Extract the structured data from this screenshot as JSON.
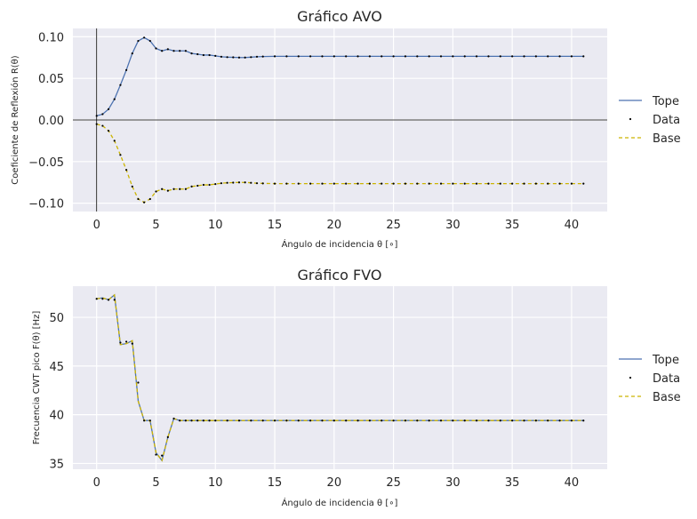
{
  "chart_data": [
    {
      "type": "line",
      "title": "Gráfico AVO",
      "xlabel": "Ángulo de incidencia θ [∘]",
      "ylabel": "Coeficiente de Reflexión R(θ)",
      "xlim": [
        -2,
        43
      ],
      "ylim": [
        -0.11,
        0.11
      ],
      "xticks": [
        0,
        5,
        10,
        15,
        20,
        25,
        30,
        35,
        40
      ],
      "yticks": [
        -0.1,
        -0.05,
        0.0,
        0.05,
        0.1
      ],
      "ytick_labels": [
        "−0.10",
        "−0.05",
        "0.00",
        "0.05",
        "0.10"
      ],
      "reference_lines": {
        "y": 0,
        "x": 0
      },
      "grid": true,
      "legend_position": "right",
      "series": [
        {
          "name": "Tope",
          "style": "solid",
          "color": "#4c72b0",
          "x": [
            0,
            0.5,
            1,
            1.5,
            2,
            2.5,
            3,
            3.5,
            4,
            4.5,
            5,
            5.5,
            6,
            6.5,
            7,
            7.5,
            8,
            8.5,
            9,
            9.5,
            10,
            10.5,
            11,
            11.5,
            12,
            12.5,
            13,
            13.5,
            14,
            15,
            16,
            17,
            18,
            19,
            20,
            21,
            22,
            23,
            24,
            25,
            26,
            27,
            28,
            29,
            30,
            31,
            32,
            33,
            34,
            35,
            36,
            37,
            38,
            39,
            40,
            41
          ],
          "y": [
            0.005,
            0.007,
            0.013,
            0.025,
            0.042,
            0.06,
            0.08,
            0.095,
            0.099,
            0.095,
            0.086,
            0.083,
            0.085,
            0.083,
            0.083,
            0.083,
            0.08,
            0.079,
            0.078,
            0.078,
            0.077,
            0.076,
            0.0755,
            0.0753,
            0.075,
            0.075,
            0.0755,
            0.076,
            0.0762,
            0.0765,
            0.0765,
            0.0765,
            0.0765,
            0.0765,
            0.0765,
            0.0765,
            0.0765,
            0.0765,
            0.0765,
            0.0765,
            0.0765,
            0.0765,
            0.0765,
            0.0765,
            0.0765,
            0.0765,
            0.0765,
            0.0765,
            0.0765,
            0.0765,
            0.0765,
            0.0765,
            0.0765,
            0.0765,
            0.0765,
            0.0765
          ]
        },
        {
          "name": "Data",
          "style": "markers",
          "color": "#000000",
          "x": [
            0,
            0.5,
            1,
            1.5,
            2,
            2.5,
            3,
            3.5,
            4,
            4.5,
            5,
            5.5,
            6,
            6.5,
            7,
            7.5,
            8,
            8.5,
            9,
            9.5,
            10,
            10.5,
            11,
            11.5,
            12,
            12.5,
            13,
            13.5,
            14,
            15,
            16,
            17,
            18,
            19,
            20,
            21,
            22,
            23,
            24,
            25,
            26,
            27,
            28,
            29,
            30,
            31,
            32,
            33,
            34,
            35,
            36,
            37,
            38,
            39,
            40,
            41
          ],
          "y_top": [
            0.005,
            0.007,
            0.013,
            0.025,
            0.042,
            0.06,
            0.08,
            0.095,
            0.099,
            0.095,
            0.086,
            0.083,
            0.085,
            0.083,
            0.083,
            0.083,
            0.08,
            0.079,
            0.078,
            0.078,
            0.077,
            0.076,
            0.0755,
            0.0753,
            0.075,
            0.075,
            0.0755,
            0.076,
            0.0762,
            0.0765,
            0.0765,
            0.0765,
            0.0765,
            0.0765,
            0.0765,
            0.0765,
            0.0765,
            0.0765,
            0.0765,
            0.0765,
            0.0765,
            0.0765,
            0.0765,
            0.0765,
            0.0765,
            0.0765,
            0.0765,
            0.0765,
            0.0765,
            0.0765,
            0.0765,
            0.0765,
            0.0765,
            0.0765,
            0.0765,
            0.0765
          ],
          "y_base": [
            -0.005,
            -0.007,
            -0.013,
            -0.025,
            -0.042,
            -0.06,
            -0.08,
            -0.095,
            -0.099,
            -0.095,
            -0.086,
            -0.083,
            -0.085,
            -0.083,
            -0.083,
            -0.083,
            -0.08,
            -0.079,
            -0.078,
            -0.078,
            -0.077,
            -0.076,
            -0.0755,
            -0.0753,
            -0.075,
            -0.075,
            -0.0755,
            -0.076,
            -0.0762,
            -0.0765,
            -0.0765,
            -0.0765,
            -0.0765,
            -0.0765,
            -0.0765,
            -0.0765,
            -0.0765,
            -0.0765,
            -0.0765,
            -0.0765,
            -0.0765,
            -0.0765,
            -0.0765,
            -0.0765,
            -0.0765,
            -0.0765,
            -0.0765,
            -0.0765,
            -0.0765,
            -0.0765,
            -0.0765,
            -0.0765,
            -0.0765,
            -0.0765,
            -0.0765,
            -0.0765
          ]
        },
        {
          "name": "Base",
          "style": "dashed",
          "color": "#ccb400",
          "x": [
            0,
            0.5,
            1,
            1.5,
            2,
            2.5,
            3,
            3.5,
            4,
            4.5,
            5,
            5.5,
            6,
            6.5,
            7,
            7.5,
            8,
            8.5,
            9,
            9.5,
            10,
            10.5,
            11,
            11.5,
            12,
            12.5,
            13,
            13.5,
            14,
            15,
            16,
            17,
            18,
            19,
            20,
            21,
            22,
            23,
            24,
            25,
            26,
            27,
            28,
            29,
            30,
            31,
            32,
            33,
            34,
            35,
            36,
            37,
            38,
            39,
            40,
            41
          ],
          "y": [
            -0.005,
            -0.007,
            -0.013,
            -0.025,
            -0.042,
            -0.06,
            -0.08,
            -0.095,
            -0.099,
            -0.095,
            -0.086,
            -0.083,
            -0.085,
            -0.083,
            -0.083,
            -0.083,
            -0.08,
            -0.079,
            -0.078,
            -0.078,
            -0.077,
            -0.076,
            -0.0755,
            -0.0753,
            -0.075,
            -0.075,
            -0.0755,
            -0.076,
            -0.0762,
            -0.0765,
            -0.0765,
            -0.0765,
            -0.0765,
            -0.0765,
            -0.0765,
            -0.0765,
            -0.0765,
            -0.0765,
            -0.0765,
            -0.0765,
            -0.0765,
            -0.0765,
            -0.0765,
            -0.0765,
            -0.0765,
            -0.0765,
            -0.0765,
            -0.0765,
            -0.0765,
            -0.0765,
            -0.0765,
            -0.0765,
            -0.0765,
            -0.0765,
            -0.0765,
            -0.0765
          ]
        }
      ]
    },
    {
      "type": "line",
      "title": "Gráfico FVO",
      "xlabel": "Ángulo de incidencia θ [∘]",
      "ylabel": "Frecuencia CWT pico F(θ) [Hz]",
      "xlim": [
        -2,
        43
      ],
      "ylim": [
        34.4,
        53.2
      ],
      "xticks": [
        0,
        5,
        10,
        15,
        20,
        25,
        30,
        35,
        40
      ],
      "yticks": [
        35,
        40,
        45,
        50
      ],
      "ytick_labels": [
        "35",
        "40",
        "45",
        "50"
      ],
      "grid": true,
      "legend_position": "right",
      "series": [
        {
          "name": "Tope",
          "style": "solid",
          "color": "#4c72b0",
          "x": [
            0,
            0.5,
            1,
            1.5,
            2,
            2.5,
            3,
            3.5,
            4,
            4.5,
            5,
            5.5,
            6,
            6.5,
            7,
            7.5,
            8,
            8.5,
            9,
            9.5,
            10,
            11,
            12,
            13,
            14,
            15,
            16,
            17,
            18,
            19,
            20,
            21,
            22,
            23,
            24,
            25,
            26,
            27,
            28,
            29,
            30,
            31,
            32,
            33,
            34,
            35,
            36,
            37,
            38,
            39,
            40,
            41
          ],
          "y": [
            51.9,
            52.0,
            51.8,
            52.3,
            47.2,
            47.3,
            47.6,
            41.4,
            39.4,
            39.4,
            36.1,
            35.3,
            37.7,
            39.6,
            39.4,
            39.4,
            39.4,
            39.4,
            39.4,
            39.4,
            39.4,
            39.4,
            39.4,
            39.4,
            39.4,
            39.4,
            39.4,
            39.4,
            39.4,
            39.4,
            39.4,
            39.4,
            39.4,
            39.4,
            39.4,
            39.4,
            39.4,
            39.4,
            39.4,
            39.4,
            39.4,
            39.4,
            39.4,
            39.4,
            39.4,
            39.4,
            39.4,
            39.4,
            39.4,
            39.4,
            39.4,
            39.4
          ]
        },
        {
          "name": "Data",
          "style": "markers",
          "color": "#000000",
          "x": [
            0,
            0.5,
            1,
            1.5,
            2,
            2.5,
            3,
            3.5,
            4,
            4.5,
            5,
            5.5,
            6,
            6.5,
            7,
            7.5,
            8,
            8.5,
            9,
            9.5,
            10,
            11,
            12,
            13,
            14,
            15,
            16,
            17,
            18,
            19,
            20,
            21,
            22,
            23,
            24,
            25,
            26,
            27,
            28,
            29,
            30,
            31,
            32,
            33,
            34,
            35,
            36,
            37,
            38,
            39,
            40,
            41
          ],
          "y": [
            51.9,
            51.9,
            51.8,
            51.8,
            47.4,
            47.5,
            47.3,
            43.3,
            39.4,
            39.4,
            35.9,
            35.8,
            37.7,
            39.6,
            39.4,
            39.4,
            39.4,
            39.4,
            39.4,
            39.4,
            39.4,
            39.4,
            39.4,
            39.4,
            39.4,
            39.4,
            39.4,
            39.4,
            39.4,
            39.4,
            39.4,
            39.4,
            39.4,
            39.4,
            39.4,
            39.4,
            39.4,
            39.4,
            39.4,
            39.4,
            39.4,
            39.4,
            39.4,
            39.4,
            39.4,
            39.4,
            39.4,
            39.4,
            39.4,
            39.4,
            39.4,
            39.4
          ]
        },
        {
          "name": "Base",
          "style": "dashed",
          "color": "#ccb400",
          "x": [
            0,
            0.5,
            1,
            1.5,
            2,
            2.5,
            3,
            3.5,
            4,
            4.5,
            5,
            5.5,
            6,
            6.5,
            7,
            7.5,
            8,
            8.5,
            9,
            9.5,
            10,
            11,
            12,
            13,
            14,
            15,
            16,
            17,
            18,
            19,
            20,
            21,
            22,
            23,
            24,
            25,
            26,
            27,
            28,
            29,
            30,
            31,
            32,
            33,
            34,
            35,
            36,
            37,
            38,
            39,
            40,
            41
          ],
          "y": [
            51.9,
            52.0,
            51.8,
            52.3,
            47.2,
            47.3,
            47.6,
            41.4,
            39.4,
            39.4,
            36.1,
            35.3,
            37.7,
            39.6,
            39.4,
            39.4,
            39.4,
            39.4,
            39.4,
            39.4,
            39.4,
            39.4,
            39.4,
            39.4,
            39.4,
            39.4,
            39.4,
            39.4,
            39.4,
            39.4,
            39.4,
            39.4,
            39.4,
            39.4,
            39.4,
            39.4,
            39.4,
            39.4,
            39.4,
            39.4,
            39.4,
            39.4,
            39.4,
            39.4,
            39.4,
            39.4,
            39.4,
            39.4,
            39.4,
            39.4,
            39.4,
            39.4
          ]
        }
      ]
    }
  ]
}
